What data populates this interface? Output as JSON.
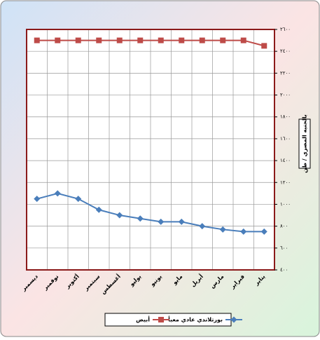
{
  "chart_data": {
    "type": "line",
    "y_label": "بالجنيه المصري / طن",
    "categories": [
      "ديسمبر",
      "نوفمبر",
      "أكتوبر",
      "سبتمبر",
      "أغسطس",
      "يوليو",
      "يونيو",
      "مايو",
      "أبريل",
      "مارس",
      "فبراير",
      "يناير"
    ],
    "series": [
      {
        "name": "بورتلاندي عادي معبأ",
        "color": "#4a7ebb",
        "marker": "diamond",
        "values": [
          1050,
          1100,
          1050,
          950,
          900,
          870,
          840,
          840,
          800,
          770,
          750,
          750
        ]
      },
      {
        "name": "أبيض",
        "color": "#be4b48",
        "marker": "square",
        "values": [
          2500,
          2500,
          2500,
          2500,
          2500,
          2500,
          2500,
          2500,
          2500,
          2500,
          2500,
          2450
        ]
      }
    ],
    "ylim": [
      400,
      2600
    ],
    "yticks": [
      {
        "value": 400,
        "label": "٤٠٠"
      },
      {
        "value": 600,
        "label": "٦٠٠"
      },
      {
        "value": 800,
        "label": "٨٠٠"
      },
      {
        "value": 1000,
        "label": "١٠٠٠"
      },
      {
        "value": 1200,
        "label": "١٢٠٠"
      },
      {
        "value": 1400,
        "label": "١٤٠٠"
      },
      {
        "value": 1600,
        "label": "١٦٠٠"
      },
      {
        "value": 1800,
        "label": "١٨٠٠"
      },
      {
        "value": 2000,
        "label": "٢٠٠٠"
      },
      {
        "value": 2200,
        "label": "٢٢٠٠"
      },
      {
        "value": 2400,
        "label": "٢٤٠٠"
      },
      {
        "value": 2600,
        "label": "٢٦٠٠"
      }
    ],
    "grid": true
  }
}
